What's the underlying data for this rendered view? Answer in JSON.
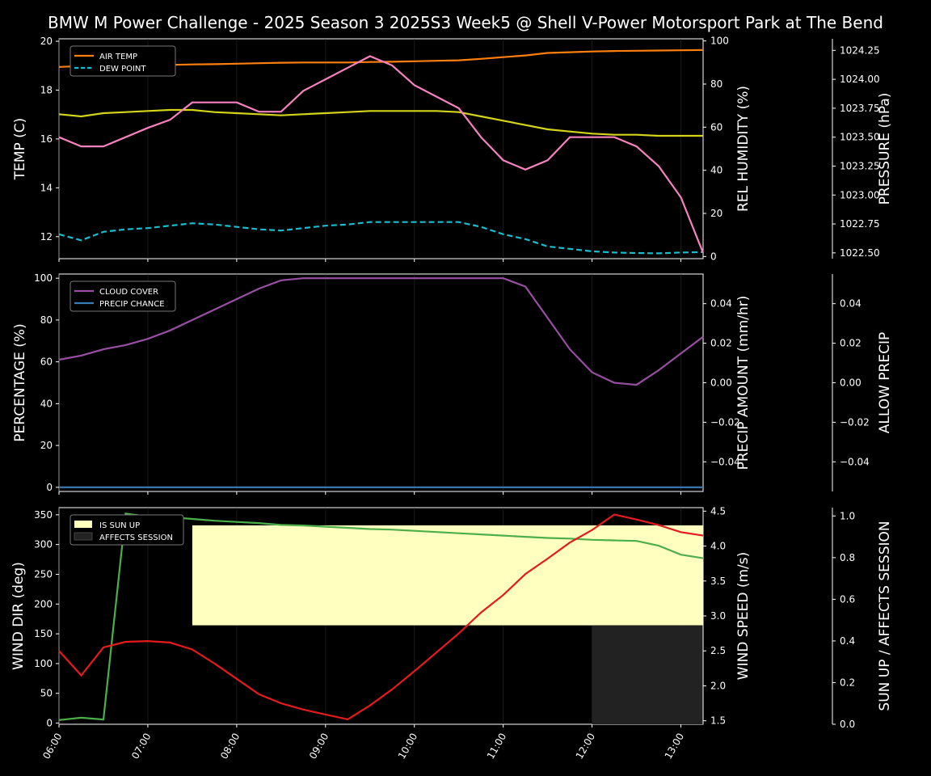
{
  "title": "BMW M Power Challenge - 2025 Season 3 2025S3 Week5 @ Shell V-Power Motorsport Park at The Bend",
  "colors": {
    "air_temp": "#ff7f0e",
    "dew_point": "#17becf",
    "humidity": "#d4d41a",
    "pressure": "#f781bf",
    "cloud": "#984ea3",
    "precip_chance": "#377eb8",
    "precip_amount": "#a0522d",
    "wind_dir": "#4daf4a",
    "wind_speed": "#e41a1c",
    "sun_up": "#ffffc0",
    "affects_session": "#222222"
  },
  "x_ticks": [
    "06:00",
    "07:00",
    "08:00",
    "09:00",
    "10:00",
    "11:00",
    "12:00",
    "13:00"
  ],
  "chart_data": [
    {
      "type": "line",
      "panel": "weather",
      "x": [
        "06:00",
        "06:15",
        "06:30",
        "06:45",
        "07:00",
        "07:15",
        "07:30",
        "07:45",
        "08:00",
        "08:15",
        "08:30",
        "08:45",
        "09:00",
        "09:15",
        "09:30",
        "09:45",
        "10:00",
        "10:15",
        "10:30",
        "10:45",
        "11:00",
        "11:15",
        "11:30",
        "11:45",
        "12:00",
        "12:15",
        "12:30",
        "12:45",
        "13:00",
        "13:15"
      ],
      "series": [
        {
          "name": "AIR TEMP",
          "axis": "left",
          "values": [
            18.95,
            18.98,
            19.0,
            19.01,
            19.02,
            19.03,
            19.05,
            19.06,
            19.08,
            19.1,
            19.12,
            19.13,
            19.13,
            19.13,
            19.15,
            19.16,
            19.18,
            19.2,
            19.22,
            19.28,
            19.35,
            19.42,
            19.52,
            19.55,
            19.58,
            19.6,
            19.61,
            19.62,
            19.63,
            19.64
          ]
        },
        {
          "name": "DEW POINT",
          "axis": "left",
          "values": [
            12.1,
            11.85,
            12.2,
            12.3,
            12.35,
            12.45,
            12.55,
            12.5,
            12.4,
            12.3,
            12.25,
            12.35,
            12.45,
            12.5,
            12.6,
            12.6,
            12.6,
            12.6,
            12.6,
            12.4,
            12.1,
            11.9,
            11.6,
            11.5,
            11.4,
            11.35,
            11.33,
            11.32,
            11.35,
            11.37
          ]
        },
        {
          "name": "REL HUMIDITY",
          "axis": "right1",
          "values": [
            66,
            65,
            66.5,
            67,
            67.5,
            68,
            68,
            67,
            66.5,
            66,
            65.5,
            66,
            66.5,
            67,
            67.5,
            67.5,
            67.5,
            67.5,
            67,
            65,
            63,
            61,
            59,
            58,
            57,
            56.5,
            56.5,
            56,
            56,
            56
          ]
        },
        {
          "name": "PRESSURE",
          "axis": "right2",
          "values": [
            1023.5,
            1023.42,
            1023.42,
            1023.5,
            1023.58,
            1023.65,
            1023.8,
            1023.8,
            1023.8,
            1023.72,
            1023.72,
            1023.9,
            1024.0,
            1024.1,
            1024.2,
            1024.12,
            1023.95,
            1023.85,
            1023.75,
            1023.5,
            1023.3,
            1023.22,
            1023.3,
            1023.5,
            1023.5,
            1023.5,
            1023.42,
            1023.25,
            1022.98,
            1022.5
          ]
        }
      ],
      "ylabel": "TEMP (C)",
      "ylim": [
        11.1,
        20.1
      ],
      "y_ticks": [
        12,
        14,
        16,
        18,
        20
      ],
      "right_axes": [
        {
          "label": "REL HUMIDITY (%)",
          "ylim": [
            -1,
            101
          ],
          "ticks": [
            0,
            20,
            40,
            60,
            80,
            100
          ]
        },
        {
          "label": "PRESSURE (hPa)",
          "ylim": [
            1022.45,
            1024.35
          ],
          "ticks": [
            "1022.50",
            "1022.75",
            "1023.00",
            "1023.25",
            "1023.50",
            "1023.75",
            "1024.00",
            "1024.25"
          ]
        }
      ],
      "legend": [
        "AIR TEMP",
        "DEW POINT"
      ],
      "legend_position": "top-left"
    },
    {
      "type": "line",
      "panel": "clouds",
      "x": [
        "06:00",
        "06:15",
        "06:30",
        "06:45",
        "07:00",
        "07:15",
        "07:30",
        "07:45",
        "08:00",
        "08:15",
        "08:30",
        "08:45",
        "09:00",
        "09:15",
        "09:30",
        "09:45",
        "10:00",
        "10:15",
        "10:30",
        "10:45",
        "11:00",
        "11:15",
        "11:30",
        "11:45",
        "12:00",
        "12:15",
        "12:30",
        "12:45",
        "13:00",
        "13:15"
      ],
      "series": [
        {
          "name": "CLOUD COVER",
          "axis": "left",
          "values": [
            61,
            63,
            66,
            68,
            71,
            75,
            80,
            85,
            90,
            95,
            99,
            100,
            100,
            100,
            100,
            100,
            100,
            100,
            100,
            100,
            100,
            96,
            81,
            66,
            55,
            50,
            49,
            56,
            64,
            72
          ]
        },
        {
          "name": "PRECIP CHANCE",
          "axis": "left",
          "values": [
            0,
            0,
            0,
            0,
            0,
            0,
            0,
            0,
            0,
            0,
            0,
            0,
            0,
            0,
            0,
            0,
            0,
            0,
            0,
            0,
            0,
            0,
            0,
            0,
            0,
            0,
            0,
            0,
            0,
            0
          ]
        }
      ],
      "ylabel": "PERCENTAGE (%)",
      "ylim": [
        -2,
        102
      ],
      "y_ticks": [
        0,
        20,
        40,
        60,
        80,
        100
      ],
      "right_axes": [
        {
          "label": "PRECIP AMOUNT (mm/hr)",
          "ylim": [
            -0.055,
            0.055
          ],
          "ticks": [
            "−0.04",
            "−0.02",
            "0.00",
            "0.02",
            "0.04"
          ]
        },
        {
          "label": "ALLOW PRECIP",
          "ylim": [
            -0.055,
            0.055
          ],
          "ticks": [
            "−0.04",
            "−0.02",
            "0.00",
            "0.02",
            "0.04"
          ]
        }
      ],
      "legend": [
        "CLOUD COVER",
        "PRECIP CHANCE"
      ],
      "legend_position": "top-left"
    },
    {
      "type": "line",
      "panel": "wind",
      "x": [
        "06:00",
        "06:15",
        "06:30",
        "06:45",
        "07:00",
        "07:15",
        "07:30",
        "07:45",
        "08:00",
        "08:15",
        "08:30",
        "08:45",
        "09:00",
        "09:15",
        "09:30",
        "09:45",
        "10:00",
        "10:15",
        "10:30",
        "10:45",
        "11:00",
        "11:15",
        "11:30",
        "11:45",
        "12:00",
        "12:15",
        "12:30",
        "12:45",
        "13:00",
        "13:15"
      ],
      "series": [
        {
          "name": "WIND DIR",
          "axis": "left",
          "values": [
            5,
            9,
            6,
            352,
            347,
            346,
            343,
            340,
            338,
            336,
            333,
            332,
            330,
            328,
            326,
            325,
            323,
            321,
            319,
            317,
            315,
            313,
            311,
            310,
            308,
            307,
            306,
            298,
            283,
            277
          ]
        },
        {
          "name": "WIND SPEED",
          "axis": "right1",
          "values": [
            2.5,
            2.15,
            2.55,
            2.63,
            2.64,
            2.62,
            2.52,
            2.32,
            2.1,
            1.88,
            1.75,
            1.66,
            1.59,
            1.52,
            1.72,
            1.95,
            2.21,
            2.48,
            2.75,
            3.05,
            3.3,
            3.6,
            3.82,
            4.05,
            4.23,
            4.45,
            4.38,
            4.3,
            4.2,
            4.15
          ]
        }
      ],
      "sun_up_window": [
        "07:30",
        "13:15"
      ],
      "affects_session_window": [
        "12:00",
        "13:15"
      ],
      "ylabel": "WIND DIR (deg)",
      "ylim": [
        -2,
        362
      ],
      "y_ticks": [
        0,
        50,
        100,
        150,
        200,
        250,
        300,
        350
      ],
      "right_axes": [
        {
          "label": "WIND SPEED (m/s)",
          "ylim": [
            1.45,
            4.55
          ],
          "ticks": [
            "1.5",
            "2.0",
            "2.5",
            "3.0",
            "3.5",
            "4.0",
            "4.5"
          ]
        },
        {
          "label": "SUN UP / AFFECTS SESSION",
          "ylim": [
            0,
            1.04
          ],
          "ticks": [
            "0.0",
            "0.2",
            "0.4",
            "0.6",
            "0.8",
            "1.0"
          ]
        }
      ],
      "legend": [
        "IS SUN UP",
        "AFFECTS SESSION"
      ],
      "legend_position": "top-left"
    }
  ]
}
